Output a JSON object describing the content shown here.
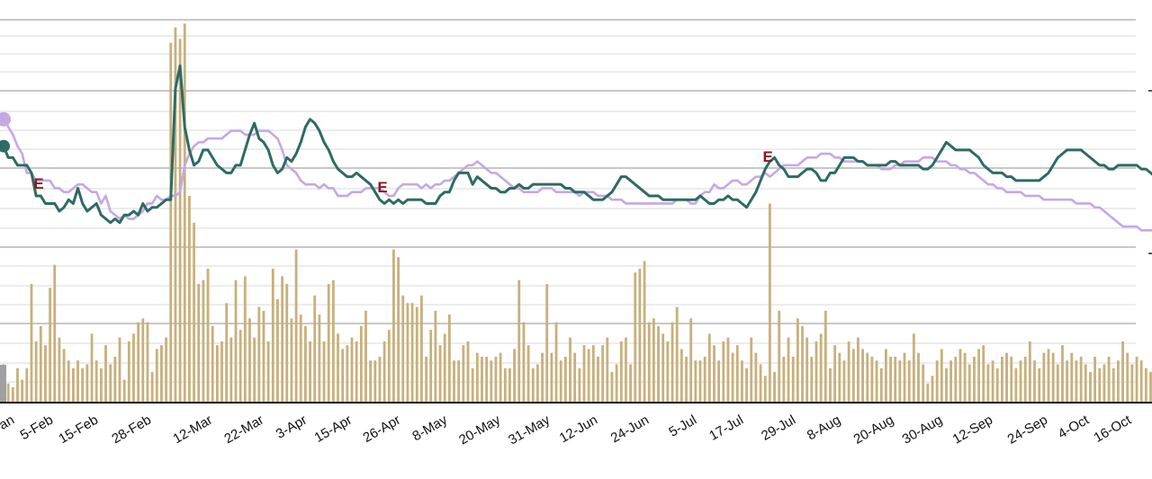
{
  "chart_data": {
    "type": "bar+line",
    "x_tick_labels": [
      "an",
      "5-Feb",
      "15-Feb",
      "28-Feb",
      "12-Mar",
      "22-Mar",
      "3-Apr",
      "15-Apr",
      "26-Apr",
      "8-May",
      "20-May",
      "31-May",
      "12-Jun",
      "24-Jun",
      "5-Jul",
      "17-Jul",
      "29-Jul",
      "8-Aug",
      "20-Aug",
      "30-Aug",
      "12-Sep",
      "24-Sep",
      "4-Oct",
      "16-Oct"
    ],
    "colors": {
      "bars": "#c8b07c",
      "line_a": "#2e6b62",
      "line_b": "#c5a8e6",
      "event": "#8b1a1a",
      "grid": "#dddddd",
      "axis": "#111111"
    },
    "bars_ylim": [
      0,
      100
    ],
    "lines_ylim": [
      0,
      100
    ],
    "series": [
      {
        "kind": "bar",
        "values": [
          10,
          5,
          4,
          9,
          6,
          9,
          31,
          16,
          20,
          15,
          30,
          36,
          17,
          14,
          11,
          9,
          11,
          9,
          10,
          18,
          11,
          9,
          15,
          10,
          12,
          17,
          6,
          16,
          18,
          21,
          22,
          21,
          8,
          14,
          15,
          17,
          94,
          98,
          95,
          99,
          54,
          47,
          31,
          32,
          35,
          20,
          15,
          16,
          26,
          17,
          32,
          19,
          33,
          22,
          17,
          25,
          24,
          16,
          35,
          27,
          33,
          31,
          22,
          40,
          23,
          20,
          16,
          28,
          23,
          16,
          31,
          32,
          18,
          14,
          15,
          17,
          16,
          20,
          24,
          11,
          11,
          12,
          16,
          19,
          40,
          38,
          28,
          26,
          26,
          25,
          28,
          12,
          19,
          24,
          15,
          18,
          23,
          11,
          11,
          15,
          16,
          9,
          13,
          12,
          12,
          11,
          12,
          13,
          9,
          9,
          14,
          32,
          21,
          15,
          9,
          10,
          13,
          31,
          13,
          21,
          11,
          12,
          17,
          13,
          9,
          15,
          14,
          15,
          12,
          15,
          17,
          8,
          10,
          16,
          17,
          10,
          34,
          35,
          37,
          21,
          22,
          20,
          18,
          16,
          21,
          25,
          14,
          12,
          22,
          11,
          11,
          12,
          18,
          15,
          11,
          16,
          17,
          13,
          15,
          11,
          9,
          17,
          13,
          10,
          7,
          52,
          8,
          24,
          12,
          17,
          12,
          22,
          20,
          17,
          12,
          16,
          18,
          24,
          9,
          15,
          13,
          11,
          16,
          14,
          17,
          14,
          13,
          12,
          11,
          9,
          14,
          12,
          12,
          11,
          13,
          11,
          18,
          13,
          10,
          5,
          7,
          11,
          14,
          9,
          11,
          12,
          14,
          13,
          10,
          12,
          14,
          15,
          10,
          11,
          9,
          12,
          13,
          12,
          9,
          11,
          12,
          16,
          11,
          9,
          13,
          14,
          13,
          10,
          15,
          11,
          13,
          11,
          12,
          10,
          8,
          12,
          9,
          10,
          12,
          9,
          11,
          16,
          13,
          10,
          12,
          11,
          9,
          8,
          14,
          13,
          12,
          10,
          11,
          9,
          8,
          12,
          10,
          49
        ]
      },
      {
        "kind": "line",
        "name": "",
        "values": [
          67,
          64,
          64,
          62,
          62,
          62,
          60,
          54,
          54,
          52,
          52,
          52,
          50,
          51,
          53,
          52,
          56,
          52,
          50,
          51,
          52,
          49,
          48,
          47,
          48,
          47,
          49,
          49,
          50,
          49,
          52,
          50,
          51,
          51,
          52,
          53,
          53,
          82,
          88,
          72,
          66,
          62,
          63,
          66,
          66,
          64,
          62,
          61,
          60,
          60,
          62,
          62,
          66,
          70,
          73,
          69,
          68,
          66,
          62,
          60,
          61,
          64,
          63,
          65,
          68,
          72,
          74,
          73,
          71,
          68,
          66,
          63,
          61,
          60,
          59,
          59,
          60,
          59,
          58,
          57,
          55,
          53,
          52,
          53,
          52,
          53,
          52,
          53,
          53,
          53,
          53,
          52,
          52,
          52,
          54,
          55,
          55,
          58,
          60,
          60,
          60,
          57,
          59,
          58,
          57,
          56,
          56,
          55,
          55,
          56,
          56,
          57,
          56,
          56,
          57,
          57,
          57,
          57,
          57,
          57,
          57,
          56,
          56,
          55,
          55,
          55,
          54,
          53,
          53,
          53,
          54,
          55,
          57,
          59,
          59,
          58,
          57,
          56,
          55,
          54,
          54,
          54,
          53,
          53,
          53,
          53,
          53,
          53,
          53,
          53,
          54,
          53,
          52,
          52,
          53,
          53,
          54,
          53,
          53,
          52,
          51,
          53,
          55,
          58,
          61,
          63,
          64,
          62,
          61,
          59,
          59,
          59,
          60,
          61,
          61,
          60,
          58,
          58,
          60,
          60,
          62,
          64,
          64,
          64,
          63,
          63,
          62,
          62,
          62,
          62,
          62,
          63,
          63,
          62,
          62,
          62,
          62,
          62,
          61,
          61,
          62,
          64,
          66,
          68,
          67,
          66,
          66,
          66,
          66,
          65,
          64,
          62,
          61,
          60,
          60,
          60,
          59,
          59,
          58,
          58,
          58,
          58,
          58,
          58,
          59,
          60,
          62,
          64,
          65,
          66,
          66,
          66,
          66,
          65,
          64,
          63,
          62,
          62,
          61,
          61,
          62,
          62,
          62,
          62,
          62,
          61,
          61,
          60,
          59,
          58,
          58,
          59,
          70
        ]
      },
      {
        "kind": "line",
        "name": "",
        "values": [
          74,
          72,
          70,
          67,
          65,
          60,
          60,
          58,
          58,
          58,
          58,
          56,
          56,
          55,
          55,
          56,
          57,
          57,
          56,
          55,
          55,
          52,
          54,
          50,
          49,
          48,
          49,
          48,
          48,
          49,
          50,
          52,
          52,
          54,
          53,
          53,
          54,
          54,
          55,
          62,
          65,
          67,
          68,
          68,
          69,
          69,
          69,
          69,
          70,
          71,
          71,
          71,
          70,
          70,
          70,
          71,
          71,
          71,
          70,
          69,
          66,
          62,
          61,
          60,
          58,
          57,
          57,
          57,
          56,
          57,
          56,
          56,
          54,
          54,
          54,
          55,
          55,
          55,
          56,
          56,
          56,
          56,
          55,
          54,
          54,
          56,
          57,
          57,
          57,
          57,
          56,
          57,
          56,
          57,
          57,
          58,
          58,
          59,
          60,
          61,
          62,
          62,
          63,
          62,
          61,
          60,
          60,
          59,
          58,
          57,
          56,
          56,
          55,
          55,
          55,
          55,
          56,
          56,
          56,
          55,
          55,
          55,
          55,
          55,
          54,
          55,
          55,
          55,
          54,
          54,
          54,
          53,
          53,
          53,
          52,
          52,
          52,
          52,
          52,
          52,
          52,
          52,
          52,
          52,
          52,
          53,
          53,
          53,
          52,
          52,
          54,
          55,
          55,
          57,
          56,
          56,
          57,
          58,
          58,
          57,
          57,
          58,
          59,
          59,
          60,
          59,
          60,
          61,
          62,
          62,
          62,
          62,
          63,
          64,
          64,
          64,
          65,
          65,
          65,
          64,
          64,
          63,
          63,
          63,
          63,
          63,
          62,
          62,
          62,
          61,
          61,
          61,
          62,
          62,
          63,
          63,
          63,
          63,
          64,
          64,
          64,
          63,
          63,
          63,
          62,
          62,
          61,
          61,
          60,
          60,
          59,
          58,
          57,
          57,
          56,
          56,
          55,
          55,
          55,
          55,
          54,
          54,
          54,
          54,
          53,
          53,
          53,
          53,
          53,
          53,
          53,
          52,
          52,
          52,
          52,
          51,
          51,
          50,
          49,
          48,
          47,
          46,
          46,
          46,
          46,
          45,
          45,
          45,
          45,
          45,
          45,
          45,
          45,
          45,
          45,
          45,
          45
        ]
      }
    ],
    "events": [
      {
        "label": "E",
        "index": 7
      },
      {
        "label": "E",
        "index": 81
      },
      {
        "label": "E",
        "index": 164
      }
    ]
  }
}
